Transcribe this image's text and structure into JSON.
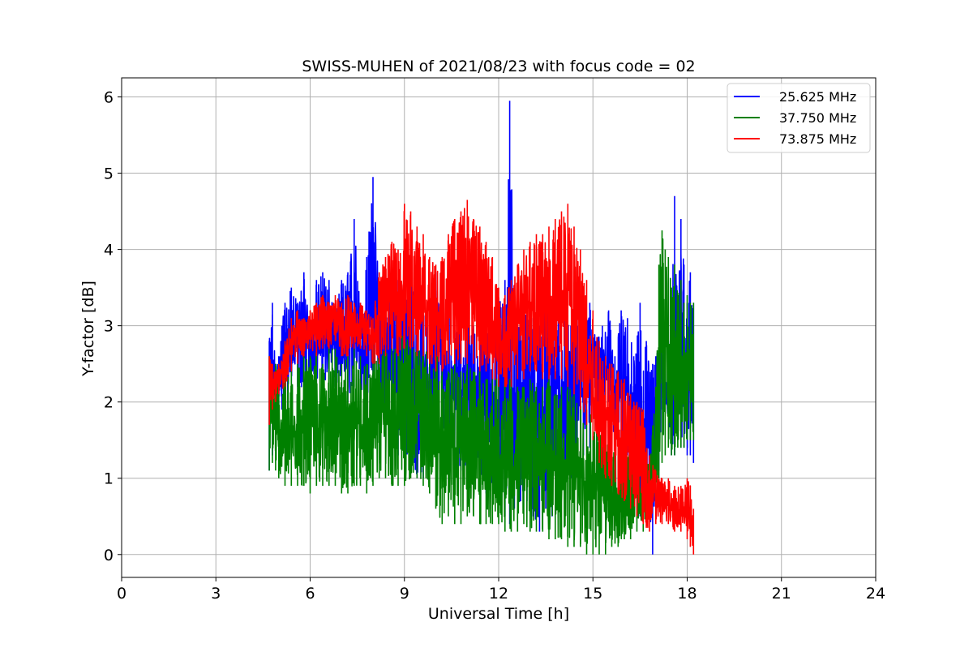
{
  "chart_data": {
    "type": "line",
    "title": "SWISS-MUHEN of 2021/08/23 with focus code = 02",
    "xlabel": "Universal Time [h]",
    "ylabel": "Y-factor [dB]",
    "xlim": [
      0,
      24
    ],
    "ylim": [
      -0.3,
      6.25
    ],
    "xticks": [
      0,
      3,
      6,
      9,
      12,
      15,
      18,
      21,
      24
    ],
    "yticks": [
      0,
      1,
      2,
      3,
      4,
      5,
      6
    ],
    "grid": true,
    "legend_position": "top-right",
    "series": [
      {
        "name": "25.625 MHz",
        "color": "#0000ff",
        "x": [
          4.7,
          4.8,
          4.9,
          5.0,
          5.1,
          5.2,
          5.4,
          5.6,
          5.8,
          6.0,
          6.2,
          6.4,
          6.6,
          6.8,
          7.0,
          7.2,
          7.4,
          7.6,
          7.8,
          8.0,
          8.2,
          8.4,
          8.6,
          8.8,
          9.0,
          9.2,
          9.4,
          9.6,
          9.8,
          10.0,
          10.2,
          10.4,
          10.6,
          10.8,
          11.0,
          11.2,
          11.4,
          11.6,
          11.8,
          12.0,
          12.2,
          12.35,
          12.5,
          12.7,
          12.9,
          13.1,
          13.3,
          13.5,
          13.7,
          13.9,
          14.1,
          14.3,
          14.5,
          14.7,
          14.9,
          15.1,
          15.3,
          15.5,
          15.7,
          15.9,
          16.1,
          16.3,
          16.5,
          16.7,
          16.9,
          17.0,
          17.1,
          17.2,
          17.3,
          17.4,
          17.5,
          17.6,
          17.7,
          17.8,
          17.9,
          18.0,
          18.1,
          18.2
        ],
        "upper": [
          2.8,
          3.3,
          2.5,
          2.6,
          3.0,
          3.3,
          3.5,
          3.3,
          3.7,
          3.1,
          3.6,
          3.7,
          3.6,
          3.2,
          3.6,
          3.7,
          4.4,
          3.3,
          3.9,
          4.95,
          3.5,
          3.4,
          3.7,
          3.6,
          3.8,
          3.7,
          3.3,
          3.5,
          3.1,
          3.7,
          3.2,
          3.5,
          2.9,
          3.1,
          3.3,
          3.0,
          3.2,
          3.1,
          3.0,
          3.3,
          3.6,
          5.95,
          3.4,
          2.9,
          3.2,
          3.1,
          3.0,
          3.3,
          2.9,
          3.1,
          3.3,
          3.0,
          3.1,
          2.9,
          3.3,
          2.8,
          3.0,
          3.2,
          2.6,
          3.2,
          3.1,
          2.6,
          3.3,
          2.8,
          2.5,
          2.6,
          2.7,
          3.2,
          2.5,
          2.8,
          3.0,
          4.7,
          3.0,
          4.4,
          3.8,
          3.3,
          3.7,
          3.3
        ],
        "lower": [
          1.1,
          1.3,
          1.6,
          1.8,
          1.9,
          2.0,
          2.2,
          2.2,
          2.1,
          2.3,
          2.2,
          2.2,
          2.3,
          2.2,
          2.0,
          2.0,
          2.2,
          2.1,
          2.0,
          2.2,
          1.7,
          1.6,
          1.6,
          1.3,
          1.2,
          1.2,
          1.0,
          1.0,
          1.2,
          1.3,
          1.3,
          1.3,
          1.2,
          1.1,
          1.2,
          1.1,
          0.9,
          0.8,
          0.7,
          0.8,
          0.5,
          0.4,
          0.6,
          0.7,
          0.7,
          0.5,
          0.3,
          0.6,
          0.5,
          0.7,
          0.9,
          1.0,
          1.1,
          1.3,
          1.4,
          1.7,
          1.9,
          2.0,
          1.4,
          1.2,
          1.3,
          1.0,
          0.5,
          0.5,
          0.0,
          1.2,
          1.1,
          1.9,
          2.0,
          1.6,
          1.3,
          1.3,
          1.5,
          1.4,
          1.4,
          1.3,
          1.3,
          1.2
        ]
      },
      {
        "name": "37.750 MHz",
        "color": "#008000",
        "x": [
          4.7,
          4.8,
          4.9,
          5.0,
          5.2,
          5.4,
          5.6,
          5.8,
          6.0,
          6.2,
          6.4,
          6.6,
          6.8,
          7.0,
          7.2,
          7.4,
          7.6,
          7.8,
          8.0,
          8.2,
          8.4,
          8.6,
          8.8,
          9.0,
          9.2,
          9.4,
          9.6,
          9.8,
          10.0,
          10.2,
          10.4,
          10.6,
          10.8,
          11.0,
          11.2,
          11.4,
          11.6,
          11.8,
          12.0,
          12.2,
          12.4,
          12.6,
          12.8,
          13.0,
          13.2,
          13.4,
          13.6,
          13.8,
          14.0,
          14.2,
          14.4,
          14.6,
          14.8,
          15.0,
          15.2,
          15.4,
          15.6,
          15.8,
          16.0,
          16.2,
          16.4,
          16.6,
          16.8,
          17.0,
          17.1,
          17.2,
          17.3,
          17.4,
          17.5,
          17.6,
          17.7,
          17.8,
          17.9,
          18.0,
          18.1,
          18.2
        ],
        "upper": [
          2.6,
          2.4,
          2.5,
          2.4,
          2.4,
          2.5,
          2.5,
          2.6,
          2.6,
          2.7,
          2.5,
          2.7,
          2.7,
          2.5,
          2.6,
          2.7,
          2.6,
          2.5,
          2.8,
          2.6,
          2.7,
          2.7,
          2.8,
          2.9,
          2.8,
          2.7,
          2.8,
          2.6,
          2.6,
          2.6,
          2.4,
          2.5,
          2.4,
          2.5,
          2.4,
          2.4,
          2.3,
          2.4,
          2.3,
          2.3,
          2.3,
          2.2,
          2.2,
          2.3,
          2.2,
          2.2,
          2.3,
          2.1,
          2.2,
          2.2,
          2.1,
          2.0,
          1.9,
          1.8,
          1.7,
          1.6,
          1.5,
          1.6,
          1.5,
          1.4,
          1.4,
          1.3,
          1.2,
          2.2,
          3.8,
          4.25,
          4.0,
          3.9,
          3.5,
          3.8,
          3.4,
          3.6,
          3.3,
          3.4,
          3.3,
          3.3
        ],
        "lower": [
          1.1,
          1.2,
          1.1,
          1.0,
          0.9,
          0.9,
          0.9,
          0.9,
          0.8,
          0.9,
          0.9,
          0.9,
          0.9,
          0.8,
          0.8,
          0.9,
          0.9,
          0.8,
          0.9,
          1.0,
          1.0,
          0.9,
          0.9,
          0.9,
          1.0,
          1.0,
          0.9,
          0.8,
          0.6,
          0.4,
          0.5,
          0.4,
          0.4,
          0.5,
          0.5,
          0.4,
          0.4,
          0.4,
          0.4,
          0.3,
          0.3,
          0.3,
          0.4,
          0.3,
          0.3,
          0.3,
          0.2,
          0.2,
          0.2,
          0.1,
          0.1,
          0.1,
          0.0,
          0.0,
          0.0,
          0.0,
          0.1,
          0.1,
          0.2,
          0.2,
          0.3,
          0.3,
          0.5,
          0.7,
          1.0,
          1.2,
          1.3,
          1.4,
          1.3,
          1.3,
          1.4,
          1.4,
          1.4,
          1.5,
          1.5,
          1.5
        ]
      },
      {
        "name": "73.875 MHz",
        "color": "#ff0000",
        "x": [
          4.7,
          4.8,
          4.9,
          5.0,
          5.2,
          5.4,
          5.6,
          5.8,
          6.0,
          6.2,
          6.4,
          6.6,
          6.8,
          7.0,
          7.2,
          7.4,
          7.6,
          7.8,
          8.0,
          8.2,
          8.4,
          8.6,
          8.8,
          9.0,
          9.2,
          9.4,
          9.6,
          9.8,
          10.0,
          10.2,
          10.4,
          10.6,
          10.8,
          11.0,
          11.2,
          11.4,
          11.6,
          11.8,
          12.0,
          12.2,
          12.4,
          12.6,
          12.8,
          13.0,
          13.2,
          13.4,
          13.6,
          13.8,
          14.0,
          14.2,
          14.4,
          14.6,
          14.8,
          15.0,
          15.2,
          15.4,
          15.6,
          15.8,
          16.0,
          16.2,
          16.4,
          16.6,
          16.8,
          17.0,
          17.2,
          17.4,
          17.6,
          17.8,
          18.0,
          18.1,
          18.2
        ],
        "upper": [
          2.6,
          2.5,
          2.4,
          2.5,
          2.8,
          3.1,
          3.2,
          3.1,
          3.2,
          3.3,
          3.4,
          3.3,
          3.4,
          3.3,
          3.4,
          3.3,
          3.3,
          3.2,
          3.1,
          3.7,
          3.9,
          4.1,
          4.0,
          4.6,
          4.5,
          4.3,
          4.2,
          3.9,
          3.8,
          3.9,
          4.2,
          4.4,
          4.5,
          4.65,
          4.4,
          4.3,
          4.1,
          3.9,
          3.5,
          3.4,
          3.6,
          3.8,
          4.0,
          4.1,
          4.2,
          4.2,
          4.3,
          4.4,
          4.5,
          4.6,
          4.3,
          4.0,
          3.6,
          3.2,
          2.8,
          2.6,
          2.5,
          2.4,
          2.3,
          2.1,
          2.0,
          1.9,
          1.3,
          1.1,
          1.0,
          1.0,
          0.9,
          0.9,
          1.0,
          0.9,
          0.6
        ],
        "lower": [
          1.7,
          1.9,
          2.0,
          2.1,
          2.2,
          2.4,
          2.5,
          2.6,
          2.7,
          2.6,
          2.7,
          2.7,
          2.8,
          2.6,
          2.6,
          2.7,
          2.7,
          2.6,
          2.5,
          2.5,
          2.6,
          2.7,
          2.6,
          2.7,
          2.7,
          2.6,
          2.6,
          2.5,
          2.4,
          2.4,
          2.5,
          2.5,
          2.5,
          2.5,
          2.5,
          2.4,
          2.4,
          2.3,
          2.2,
          2.2,
          2.2,
          2.3,
          2.3,
          2.4,
          2.4,
          2.3,
          2.3,
          2.3,
          2.3,
          2.2,
          2.1,
          1.9,
          1.7,
          1.5,
          1.2,
          1.0,
          0.9,
          0.8,
          0.7,
          0.6,
          0.5,
          0.4,
          0.3,
          0.4,
          0.4,
          0.4,
          0.3,
          0.3,
          0.2,
          0.1,
          0.0
        ]
      }
    ]
  }
}
